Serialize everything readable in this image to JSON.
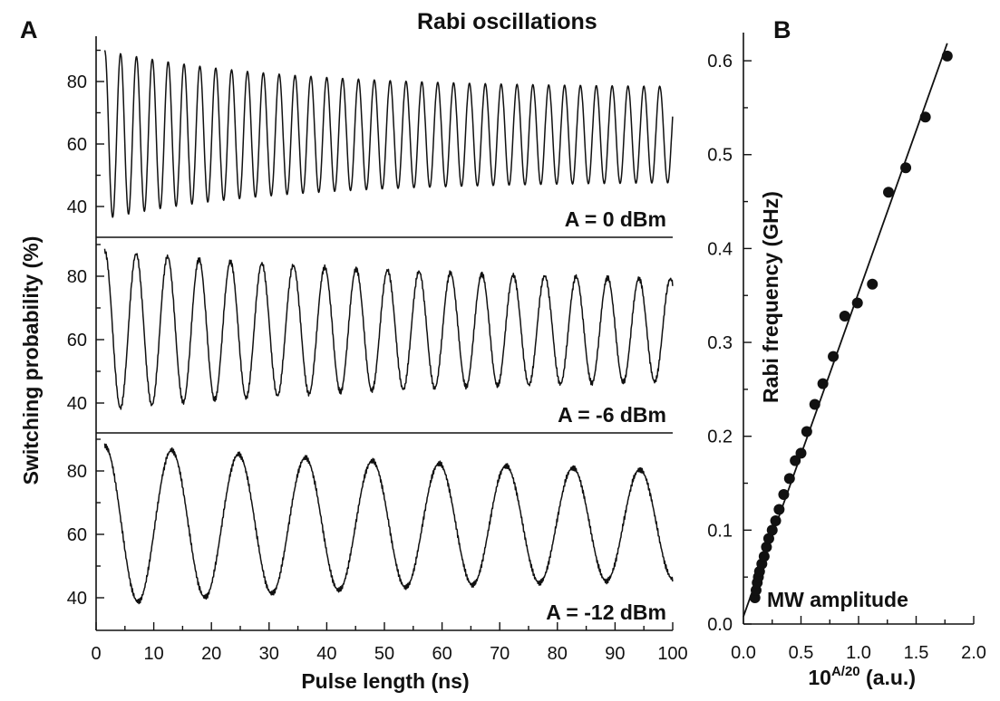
{
  "figure": {
    "title": "Rabi oscillations",
    "panel_a": "A",
    "panel_b": "B"
  },
  "chart_data": [
    {
      "id": "A",
      "type": "line",
      "panel_label": "A",
      "xlabel": "Pulse length (ns)",
      "ylabel": "Switching probability (%)",
      "xlim": [
        0,
        100
      ],
      "xticks": [
        0,
        10,
        20,
        30,
        40,
        50,
        60,
        70,
        80,
        90,
        100
      ],
      "grid": false,
      "subplots": [
        {
          "label": "A = 0 dBm",
          "yticks": [
            40,
            60,
            80
          ],
          "ylim": [
            32,
            92
          ],
          "x_start_ns": 1.5,
          "period_ns": 2.75,
          "center_pct": 63,
          "amplitude_start_pct": 27,
          "amplitude_end_pct": 15,
          "amplitude_decay_ns": 30,
          "start_value_pct": 63
        },
        {
          "label": "A = -6 dBm",
          "yticks": [
            40,
            60,
            80
          ],
          "ylim": [
            33,
            92
          ],
          "x_start_ns": 1.5,
          "period_ns": 5.45,
          "center_pct": 63,
          "amplitude_start_pct": 25,
          "amplitude_end_pct": 14,
          "amplitude_decay_ns": 60,
          "start_value_pct": 86
        },
        {
          "label": "A = -12 dBm",
          "yticks": [
            40,
            60,
            80
          ],
          "ylim": [
            33,
            92
          ],
          "x_start_ns": 1.5,
          "period_ns": 11.6,
          "center_pct": 63,
          "amplitude_start_pct": 25,
          "amplitude_end_pct": 14,
          "amplitude_decay_ns": 80,
          "start_value_pct": 88
        }
      ]
    },
    {
      "id": "B",
      "type": "scatter",
      "panel_label": "B",
      "xlabel": "10",
      "xlabel_sup": "A/20",
      "xlabel_suffix": " (a.u.)",
      "ylabel": "Rabi frequency (GHz)",
      "annotation": "MW amplitude",
      "xlim": [
        0,
        2
      ],
      "ylim": [
        0,
        0.63
      ],
      "xticks": [
        "0.0",
        "0.5",
        "1.0",
        "1.5",
        "2.0"
      ],
      "yticks": [
        "0.0",
        "0.1",
        "0.2",
        "0.3",
        "0.4",
        "0.5",
        "0.6"
      ],
      "grid": false,
      "fit": {
        "slope": 0.345,
        "intercept": 0.008,
        "x_range": [
          0,
          1.77
        ]
      },
      "points": [
        [
          0.1,
          0.028
        ],
        [
          0.11,
          0.036
        ],
        [
          0.12,
          0.044
        ],
        [
          0.13,
          0.05
        ],
        [
          0.14,
          0.056
        ],
        [
          0.16,
          0.064
        ],
        [
          0.18,
          0.072
        ],
        [
          0.2,
          0.082
        ],
        [
          0.22,
          0.091
        ],
        [
          0.25,
          0.1
        ],
        [
          0.28,
          0.11
        ],
        [
          0.31,
          0.122
        ],
        [
          0.35,
          0.138
        ],
        [
          0.4,
          0.155
        ],
        [
          0.45,
          0.174
        ],
        [
          0.5,
          0.182
        ],
        [
          0.55,
          0.205
        ],
        [
          0.62,
          0.234
        ],
        [
          0.69,
          0.256
        ],
        [
          0.78,
          0.285
        ],
        [
          0.88,
          0.328
        ],
        [
          0.99,
          0.342
        ],
        [
          1.12,
          0.362
        ],
        [
          1.26,
          0.46
        ],
        [
          1.41,
          0.486
        ],
        [
          1.58,
          0.54
        ],
        [
          1.77,
          0.605
        ]
      ]
    }
  ]
}
